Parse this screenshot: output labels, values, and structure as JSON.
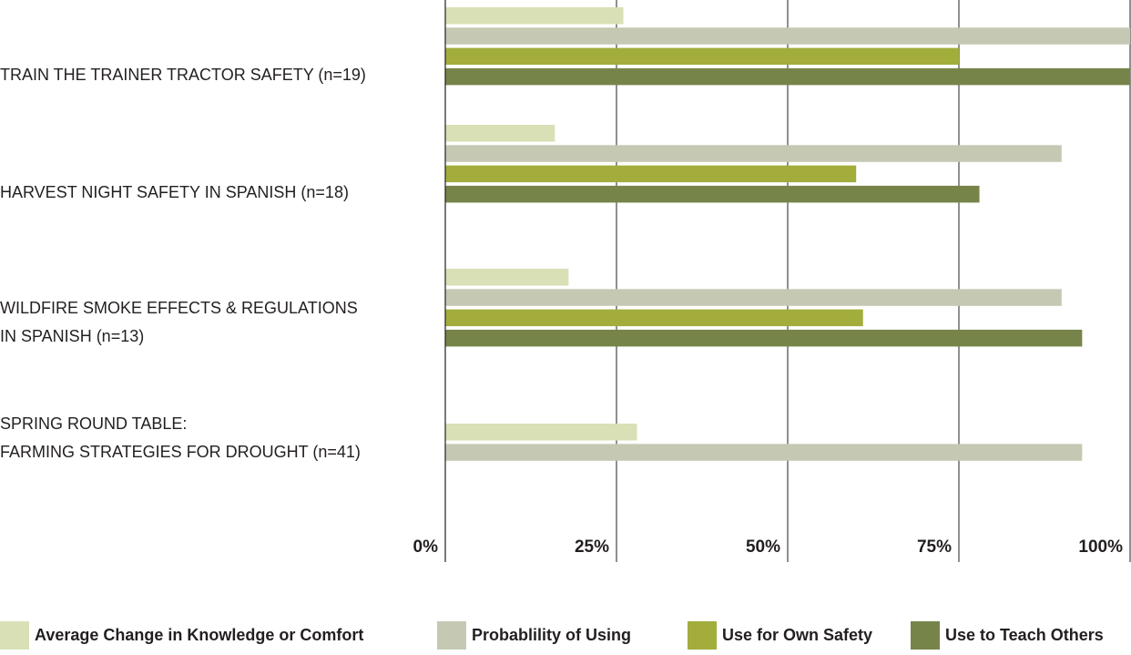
{
  "chart_data": {
    "type": "barh",
    "categories": [
      "TRAIN THE TRAINER TRACTOR SAFETY (n=19)",
      "HARVEST NIGHT SAFETY IN SPANISH (n=18)",
      "WILDFIRE SMOKE EFFECTS & REGULATIONS\nIN SPANISH (n=13)",
      "SPRING ROUND TABLE:\nFARMING STRATEGIES FOR DROUGHT (n=41)"
    ],
    "series": [
      {
        "name": "Average Change in Knowledge or Comfort",
        "color": "#d9e0b5",
        "values": [
          26,
          16,
          18,
          28
        ]
      },
      {
        "name": "Probablility of Using",
        "color": "#c5c9b3",
        "values": [
          100,
          90,
          90,
          93
        ]
      },
      {
        "name": "Use for Own Safety",
        "color": "#a2ad3c",
        "values": [
          75,
          60,
          61,
          null
        ]
      },
      {
        "name": "Use to Teach Others",
        "color": "#768449",
        "values": [
          100,
          78,
          93,
          null
        ]
      }
    ],
    "xlim": [
      0,
      100
    ],
    "xticks": [
      {
        "value": 0,
        "label": "0%"
      },
      {
        "value": 25,
        "label": "25%"
      },
      {
        "value": 50,
        "label": "50%"
      },
      {
        "value": 75,
        "label": "75%"
      },
      {
        "value": 100,
        "label": "100%"
      }
    ],
    "grid": true
  }
}
